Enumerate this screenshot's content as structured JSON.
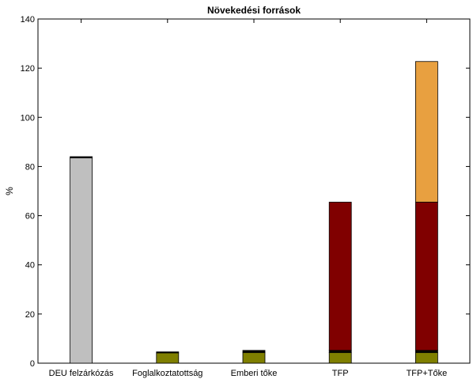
{
  "chart_data": {
    "type": "bar",
    "stacked": true,
    "title": "Növekedési források",
    "xlabel": "",
    "ylabel": "%",
    "ylim": [
      0,
      140
    ],
    "yticks": [
      0,
      20,
      40,
      60,
      80,
      100,
      120,
      140
    ],
    "grid": false,
    "categories": [
      "DEU felzárkózás",
      "Foglalkoztatottság",
      "Emberi tőke",
      "TFP",
      "TFP+Tőke"
    ],
    "segments": [
      [
        {
          "value": 83.5,
          "color": "#bfbfbf"
        },
        {
          "value": 0.5,
          "color": "#000000"
        }
      ],
      [
        {
          "value": 4.2,
          "color": "#7f7f00"
        },
        {
          "value": 0.4,
          "color": "#000000"
        }
      ],
      [
        {
          "value": 4.3,
          "color": "#7f7f00"
        },
        {
          "value": 0.9,
          "color": "#0a0a00"
        }
      ],
      [
        {
          "value": 4.3,
          "color": "#7f7f00"
        },
        {
          "value": 0.9,
          "color": "#0a0a00"
        },
        {
          "value": 60.3,
          "color": "#800000"
        }
      ],
      [
        {
          "value": 4.3,
          "color": "#7f7f00"
        },
        {
          "value": 0.9,
          "color": "#0a0a00"
        },
        {
          "value": 60.3,
          "color": "#800000"
        },
        {
          "value": 57.2,
          "color": "#e8a040"
        }
      ]
    ]
  }
}
